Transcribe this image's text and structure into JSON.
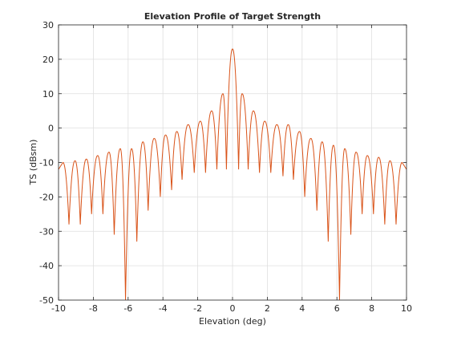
{
  "chart_data": {
    "type": "line",
    "title": "Elevation Profile of Target Strength",
    "xlabel": "Elevation (deg)",
    "ylabel": "TS (dBsm)",
    "xlim": [
      -10,
      10
    ],
    "ylim": [
      -50,
      30
    ],
    "xticks": [
      -10,
      -8,
      -6,
      -4,
      -2,
      0,
      2,
      4,
      6,
      8,
      10
    ],
    "yticks": [
      -50,
      -40,
      -30,
      -20,
      -10,
      0,
      10,
      20,
      30
    ],
    "xtick_labels": [
      "-10",
      "-8",
      "-6",
      "-4",
      "-2",
      "0",
      "2",
      "4",
      "6",
      "8",
      "10"
    ],
    "ytick_labels": [
      "-50",
      "-40",
      "-30",
      "-20",
      "-10",
      "0",
      "10",
      "20",
      "30"
    ],
    "grid": true,
    "line_color": "#d95319",
    "series": [
      {
        "peaks": [
          [
            -9.75,
            -10
          ],
          [
            -9.05,
            -9.5
          ],
          [
            -8.4,
            -9
          ],
          [
            -7.75,
            -8
          ],
          [
            -7.1,
            -7
          ],
          [
            -6.45,
            -6
          ],
          [
            -5.8,
            -6
          ],
          [
            -5.15,
            -4
          ],
          [
            -4.5,
            -3
          ],
          [
            -3.85,
            -2
          ],
          [
            -3.2,
            -1
          ],
          [
            -2.55,
            1
          ],
          [
            -1.85,
            2
          ],
          [
            -1.2,
            5
          ],
          [
            -0.55,
            10
          ],
          [
            0,
            23
          ],
          [
            0.55,
            10
          ],
          [
            1.2,
            5
          ],
          [
            1.85,
            2
          ],
          [
            2.55,
            1
          ],
          [
            3.2,
            1
          ],
          [
            3.85,
            -1
          ],
          [
            4.5,
            -3
          ],
          [
            5.15,
            -4
          ],
          [
            5.8,
            -5
          ],
          [
            6.45,
            -6
          ],
          [
            7.1,
            -7
          ],
          [
            7.75,
            -8
          ],
          [
            8.4,
            -8.5
          ],
          [
            9.05,
            -9.5
          ],
          [
            9.75,
            -10
          ]
        ],
        "nulls": [
          [
            -9.4,
            -28
          ],
          [
            -8.75,
            -28
          ],
          [
            -8.1,
            -25
          ],
          [
            -7.45,
            -25
          ],
          [
            -6.8,
            -31
          ],
          [
            -6.15,
            -50
          ],
          [
            -5.5,
            -33
          ],
          [
            -4.85,
            -24
          ],
          [
            -4.15,
            -20
          ],
          [
            -3.5,
            -18
          ],
          [
            -2.9,
            -15
          ],
          [
            -2.2,
            -13
          ],
          [
            -1.55,
            -13
          ],
          [
            -0.9,
            -12
          ],
          [
            -0.35,
            -12
          ],
          [
            0.35,
            -12
          ],
          [
            0.9,
            -12
          ],
          [
            1.55,
            -13
          ],
          [
            2.2,
            -13
          ],
          [
            2.9,
            -14
          ],
          [
            3.5,
            -15
          ],
          [
            4.15,
            -20
          ],
          [
            4.85,
            -24
          ],
          [
            5.5,
            -33
          ],
          [
            6.15,
            -50
          ],
          [
            6.8,
            -31
          ],
          [
            7.45,
            -25
          ],
          [
            8.1,
            -25
          ],
          [
            8.75,
            -28
          ],
          [
            9.4,
            -28
          ]
        ]
      }
    ]
  }
}
